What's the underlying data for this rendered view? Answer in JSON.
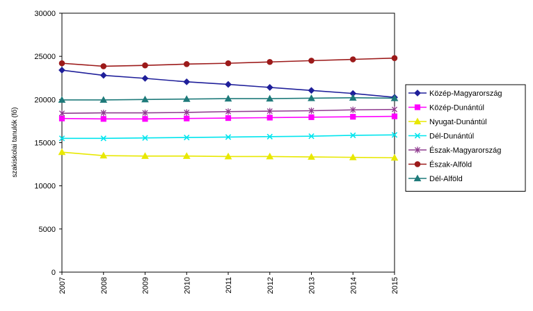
{
  "chart_data": {
    "type": "line",
    "title": "",
    "xlabel": "",
    "ylabel": "szakiskolai tanulók (fő)",
    "x": [
      "2007",
      "2008",
      "2009",
      "2010",
      "2011",
      "2012",
      "2013",
      "2014",
      "2015"
    ],
    "ylim": [
      0,
      30000
    ],
    "yticks": [
      "0",
      "5000",
      "10000",
      "15000",
      "20000",
      "25000",
      "30000"
    ],
    "grid": false,
    "legend_position": "right",
    "plot_background": "#ffffff",
    "series": [
      {
        "name": "Közép-Magyarország",
        "color": "#1f1f9a",
        "marker": "diamond",
        "values": [
          23400,
          22800,
          22450,
          22050,
          21750,
          21400,
          21050,
          20700,
          20250
        ]
      },
      {
        "name": "Közép-Dunántúl",
        "color": "#ff00ff",
        "marker": "square",
        "values": [
          17800,
          17750,
          17750,
          17800,
          17850,
          17900,
          17950,
          18000,
          18050
        ]
      },
      {
        "name": "Nyugat-Dunántúl",
        "color": "#e8e800",
        "marker": "triangle",
        "values": [
          13900,
          13500,
          13450,
          13450,
          13400,
          13400,
          13350,
          13300,
          13250
        ]
      },
      {
        "name": "Dél-Dunántúl",
        "color": "#00e5ee",
        "marker": "x",
        "values": [
          15500,
          15500,
          15550,
          15600,
          15650,
          15700,
          15750,
          15850,
          15900
        ]
      },
      {
        "name": "Észak-Magyarország",
        "color": "#8e3a8e",
        "marker": "star",
        "values": [
          18400,
          18450,
          18450,
          18500,
          18600,
          18650,
          18700,
          18800,
          18850
        ]
      },
      {
        "name": "Észak-Alföld",
        "color": "#9c1a1a",
        "marker": "circle",
        "values": [
          24200,
          23850,
          23950,
          24100,
          24200,
          24350,
          24500,
          24650,
          24800
        ]
      },
      {
        "name": "Dél-Alföld",
        "color": "#1e7a7a",
        "marker": "triangle",
        "values": [
          19950,
          19950,
          20000,
          20050,
          20100,
          20100,
          20150,
          20200,
          20150
        ]
      }
    ]
  }
}
